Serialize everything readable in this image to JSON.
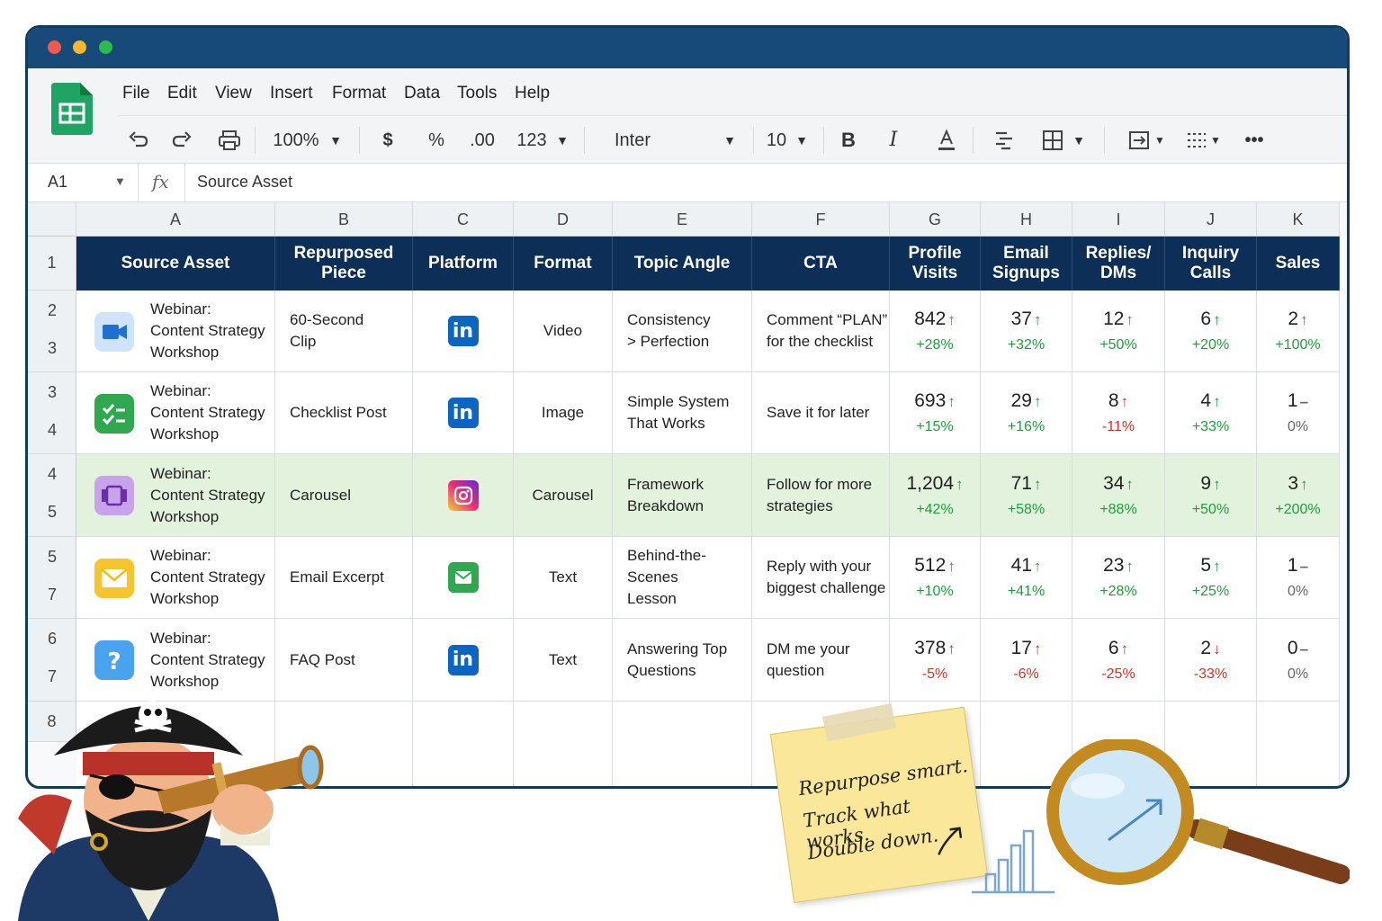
{
  "menu": [
    "File",
    "Edit",
    "View",
    "Insert",
    "Format",
    "Data",
    "Tools",
    "Help"
  ],
  "toolbar": {
    "zoom": "100%",
    "currency": "$",
    "percent": "%",
    "decimal": ".00",
    "number_format": "123",
    "font": "Inter",
    "font_size": "10",
    "bold": "B",
    "italic": "I"
  },
  "formula_bar": {
    "cell_ref": "A1",
    "fx": "fx",
    "value": "Source Asset"
  },
  "column_letters": [
    "A",
    "B",
    "C",
    "D",
    "E",
    "F",
    "G",
    "H",
    "I",
    "J",
    "K"
  ],
  "row_numbers": [
    [
      "1"
    ],
    [
      "2",
      "3"
    ],
    [
      "3",
      "4"
    ],
    [
      "4",
      "5"
    ],
    [
      "5",
      "7"
    ],
    [
      "6",
      "7"
    ],
    [
      "8"
    ]
  ],
  "headers": [
    "Source Asset",
    "Repurposed Piece",
    "Platform",
    "Format",
    "Topic Angle",
    "CTA",
    "Profile Visits",
    "Email Signups",
    "Replies/ DMs",
    "Inquiry Calls",
    "Sales"
  ],
  "header_lines": [
    [
      "Source Asset"
    ],
    [
      "Repurposed",
      "Piece"
    ],
    [
      "Platform"
    ],
    [
      "Format"
    ],
    [
      "Topic Angle"
    ],
    [
      "CTA"
    ],
    [
      "Profile",
      "Visits"
    ],
    [
      "Email",
      "Signups"
    ],
    [
      "Replies/",
      "DMs"
    ],
    [
      "Inquiry",
      "Calls"
    ],
    [
      "Sales"
    ]
  ],
  "rows": [
    {
      "source": [
        "Webinar:",
        "Content Strategy",
        "Workshop"
      ],
      "source_icon": "video-camera-icon",
      "source_color": "#3d8ee6",
      "piece": [
        "60-Second",
        "Clip"
      ],
      "platform": "linkedin-icon",
      "format": "Video",
      "topic": [
        "Consistency",
        "> Perfection"
      ],
      "cta": [
        "Comment “PLAN”",
        "for the checklist"
      ],
      "metrics": [
        {
          "value": "842",
          "change": "+28%",
          "trend": "up"
        },
        {
          "value": "37",
          "change": "+32%",
          "trend": "up"
        },
        {
          "value": "12",
          "change": "+50%",
          "trend": "up"
        },
        {
          "value": "6",
          "change": "+20%",
          "trend": "up"
        },
        {
          "value": "2",
          "change": "+100%",
          "trend": "up"
        }
      ],
      "highlight": false
    },
    {
      "source": [
        "Webinar:",
        "Content Strategy",
        "Workshop"
      ],
      "source_icon": "checklist-icon",
      "source_color": "#2fa84f",
      "piece": [
        "Checklist Post"
      ],
      "platform": "linkedin-icon",
      "format": "Image",
      "topic": [
        "Simple System",
        "That Works"
      ],
      "cta": [
        "Save it for later"
      ],
      "metrics": [
        {
          "value": "693",
          "change": "+15%",
          "trend": "up"
        },
        {
          "value": "29",
          "change": "+16%",
          "trend": "up"
        },
        {
          "value": "8",
          "change": "-11%",
          "trend": "down-up"
        },
        {
          "value": "4",
          "change": "+33%",
          "trend": "up"
        },
        {
          "value": "1",
          "change": "0%",
          "trend": "flat"
        }
      ],
      "highlight": false
    },
    {
      "source": [
        "Webinar:",
        "Content Strategy",
        "Workshop"
      ],
      "source_icon": "carousel-icon",
      "source_color": "#a66bd9",
      "piece": [
        "Carousel"
      ],
      "platform": "instagram-icon",
      "format": "Carousel",
      "topic": [
        "Framework",
        "Breakdown"
      ],
      "cta": [
        "Follow for more",
        "strategies"
      ],
      "metrics": [
        {
          "value": "1,204",
          "change": "+42%",
          "trend": "up"
        },
        {
          "value": "71",
          "change": "+58%",
          "trend": "up"
        },
        {
          "value": "34",
          "change": "+88%",
          "trend": "up"
        },
        {
          "value": "9",
          "change": "+50%",
          "trend": "up"
        },
        {
          "value": "3",
          "change": "+200%",
          "trend": "up"
        }
      ],
      "highlight": true
    },
    {
      "source": [
        "Webinar:",
        "Content Strategy",
        "Workshop"
      ],
      "source_icon": "envelope-icon",
      "source_color": "#f5b915",
      "piece": [
        "Email Excerpt"
      ],
      "platform": "email-icon",
      "format": "Text",
      "topic": [
        "Behind-the-Scenes",
        "Lesson"
      ],
      "cta": [
        "Reply with your",
        "biggest challenge"
      ],
      "metrics": [
        {
          "value": "512",
          "change": "+10%",
          "trend": "up"
        },
        {
          "value": "41",
          "change": "+41%",
          "trend": "up"
        },
        {
          "value": "23",
          "change": "+28%",
          "trend": "up"
        },
        {
          "value": "5",
          "change": "+25%",
          "trend": "up"
        },
        {
          "value": "1",
          "change": "0%",
          "trend": "flat"
        }
      ],
      "highlight": false
    },
    {
      "source": [
        "Webinar:",
        "Content Strategy",
        "Workshop"
      ],
      "source_icon": "question-icon",
      "source_color": "#4aa3ee",
      "piece": [
        "FAQ Post"
      ],
      "platform": "linkedin-icon",
      "format": "Text",
      "topic": [
        "Answering Top",
        "Questions"
      ],
      "cta": [
        "DM me your",
        "question"
      ],
      "metrics": [
        {
          "value": "378",
          "change": "-5%",
          "trend": "down-up"
        },
        {
          "value": "17",
          "change": "-6%",
          "trend": "down-up"
        },
        {
          "value": "6",
          "change": "-25%",
          "trend": "down-up"
        },
        {
          "value": "2",
          "change": "-33%",
          "trend": "down"
        },
        {
          "value": "0",
          "change": "0%",
          "trend": "flat"
        }
      ],
      "highlight": false
    }
  ],
  "note": [
    "Repurpose smart.",
    "Track what works.",
    "Double down."
  ],
  "colors": {
    "header_bg": "#0d2f57",
    "titlebar": "#174a78",
    "highlight_row": "#e3f2dc",
    "up": "#1f9d3c",
    "down": "#d93025"
  }
}
